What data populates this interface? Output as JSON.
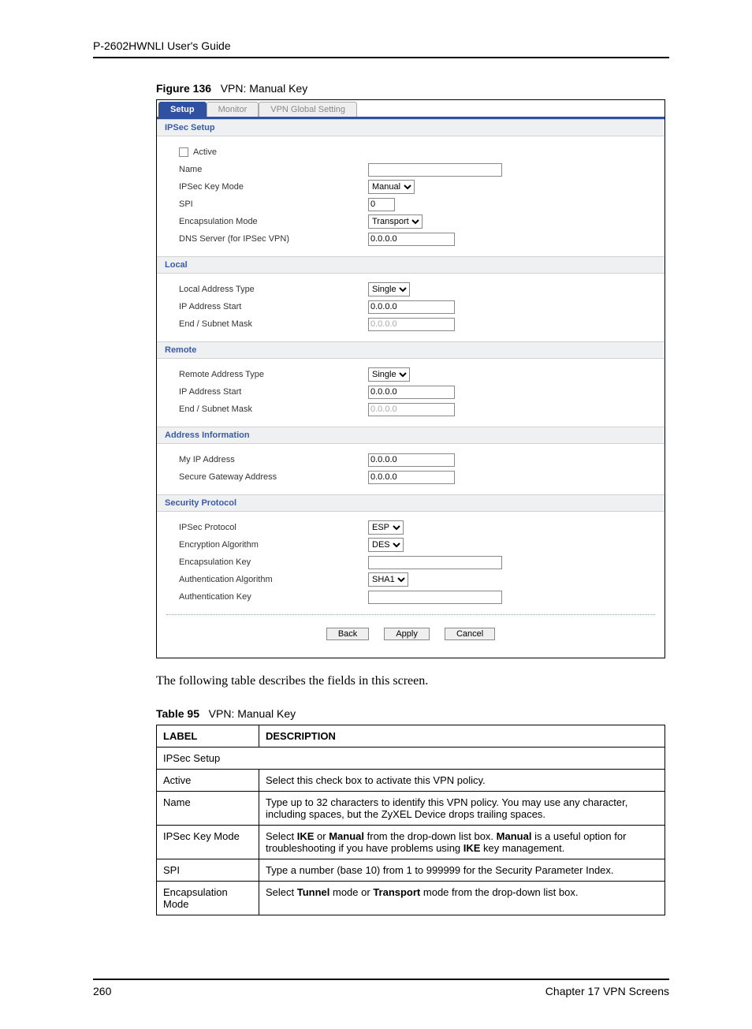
{
  "header": {
    "title": "P-2602HWNLI User's Guide"
  },
  "figure": {
    "num": "Figure 136",
    "title": "VPN: Manual Key"
  },
  "tabs": [
    {
      "label": "Setup",
      "active": true
    },
    {
      "label": "Monitor",
      "active": false
    },
    {
      "label": "VPN Global Setting",
      "active": false
    }
  ],
  "sections": {
    "ipsec": {
      "title": "IPSec Setup",
      "active_label": "Active",
      "name_label": "Name",
      "name_value": "",
      "keymode_label": "IPSec Key Mode",
      "keymode_value": "Manual",
      "spi_label": "SPI",
      "spi_value": "0",
      "encap_label": "Encapsulation Mode",
      "encap_value": "Transport",
      "dns_label": "DNS Server (for IPSec VPN)",
      "dns_value": "0.0.0.0"
    },
    "local": {
      "title": "Local",
      "type_label": "Local Address Type",
      "type_value": "Single",
      "start_label": "IP Address Start",
      "start_value": "0.0.0.0",
      "end_label": "End / Subnet Mask",
      "end_value": "0.0.0.0"
    },
    "remote": {
      "title": "Remote",
      "type_label": "Remote Address Type",
      "type_value": "Single",
      "start_label": "IP Address Start",
      "start_value": "0.0.0.0",
      "end_label": "End / Subnet Mask",
      "end_value": "0.0.0.0"
    },
    "addr": {
      "title": "Address Information",
      "myip_label": "My IP Address",
      "myip_value": "0.0.0.0",
      "sgw_label": "Secure Gateway Address",
      "sgw_value": "0.0.0.0"
    },
    "sec": {
      "title": "Security Protocol",
      "proto_label": "IPSec Protocol",
      "proto_value": "ESP",
      "encalg_label": "Encryption Algorithm",
      "encalg_value": "DES",
      "enckey_label": "Encapsulation Key",
      "enckey_value": "",
      "authalg_label": "Authentication Algorithm",
      "authalg_value": "SHA1",
      "authkey_label": "Authentication Key",
      "authkey_value": ""
    }
  },
  "buttons": {
    "back": "Back",
    "apply": "Apply",
    "cancel": "Cancel"
  },
  "body_text": "The following table describes the fields in this screen.",
  "table_caption": {
    "num": "Table 95",
    "title": "VPN: Manual Key"
  },
  "table": {
    "headers": {
      "label": "LABEL",
      "desc": "DESCRIPTION"
    },
    "rows": [
      {
        "label": "IPSec Setup",
        "span": true
      },
      {
        "label": "Active",
        "desc_parts": [
          {
            "t": "Select this check box to activate this VPN policy."
          }
        ]
      },
      {
        "label": "Name",
        "desc_parts": [
          {
            "t": "Type up to 32 characters to identify this VPN policy. You may use any character, including spaces, but the ZyXEL Device drops trailing spaces."
          }
        ]
      },
      {
        "label": "IPSec Key Mode",
        "desc_parts": [
          {
            "t": "Select "
          },
          {
            "b": "IKE"
          },
          {
            "t": " or "
          },
          {
            "b": "Manual"
          },
          {
            "t": " from the drop-down list box. "
          },
          {
            "b": "Manual"
          },
          {
            "t": " is a useful option for troubleshooting if you have problems using "
          },
          {
            "b": "IKE"
          },
          {
            "t": " key management."
          }
        ]
      },
      {
        "label": "SPI",
        "desc_parts": [
          {
            "t": "Type a number (base 10) from 1 to 999999 for the Security Parameter Index."
          }
        ]
      },
      {
        "label": "Encapsulation Mode",
        "desc_parts": [
          {
            "t": "Select "
          },
          {
            "b": "Tunnel"
          },
          {
            "t": " mode or "
          },
          {
            "b": "Transport"
          },
          {
            "t": " mode from the drop-down list box."
          }
        ]
      }
    ]
  },
  "footer": {
    "page": "260",
    "chapter": "Chapter 17 VPN Screens"
  }
}
